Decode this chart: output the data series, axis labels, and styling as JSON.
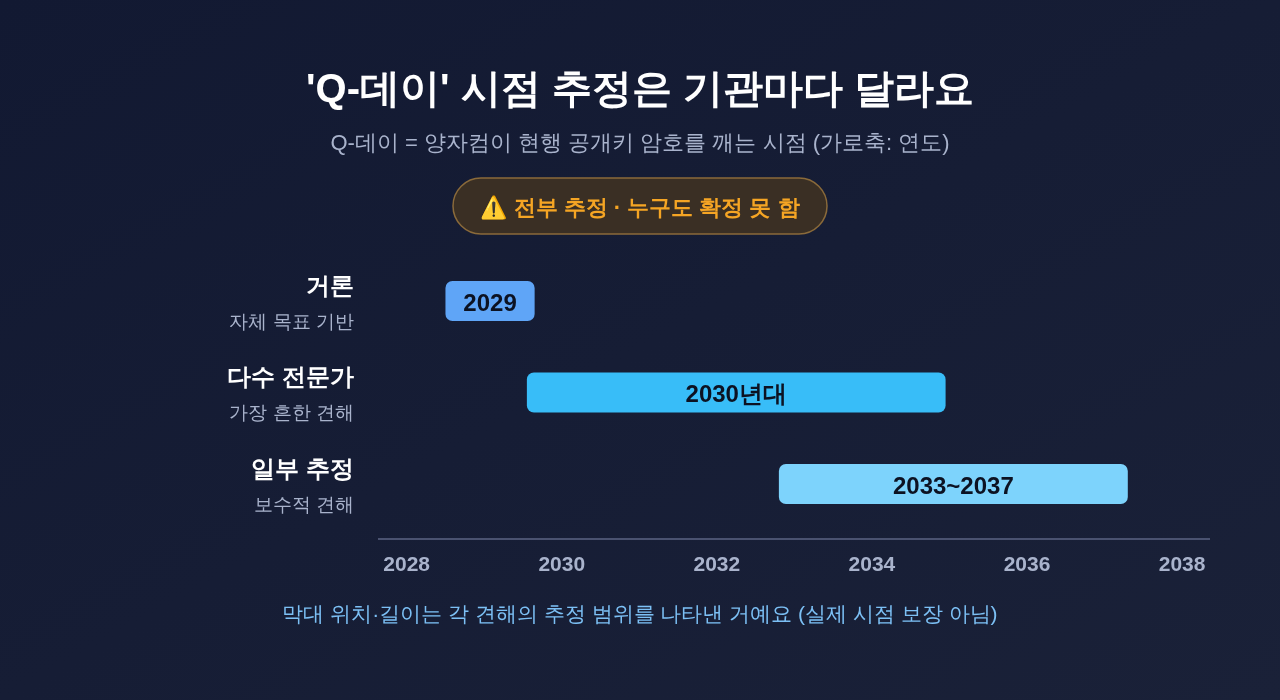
{
  "chart_data": {
    "type": "bar",
    "orientation": "horizontal",
    "title": "'Q-데이' 시점 추정은 기관마다 달라요",
    "subtitle": "Q-데이 = 양자컴이 현행 공개키 암호를 깨는 시점 (가로축: 연도)",
    "categories": [
      "거론\n자체 목표 기반",
      "다수 전문가\n가장 흔한 견해",
      "일부 추정\n보수적 견해"
    ],
    "base": [
      2028.5,
      2029.55,
      2032.8
    ],
    "values": [
      1.15,
      5.4,
      4.5
    ],
    "colors": [
      "#5fa5f7",
      "#38bdf8",
      "#7dd3fc"
    ],
    "xlim": [
      2027.63,
      2038.36
    ],
    "xticks": [
      2028,
      2030,
      2032,
      2034,
      2036,
      2038
    ],
    "annotations": [
      "⚠️ 전부 추정 · 누구도 확정 못 함",
      "막대 위치·길이는 각 견해의 추정 범위를 나타낸 거예요 (실제 시점 보장 아님)",
      "2029",
      "2030년대",
      "2033~2037"
    ]
  }
}
